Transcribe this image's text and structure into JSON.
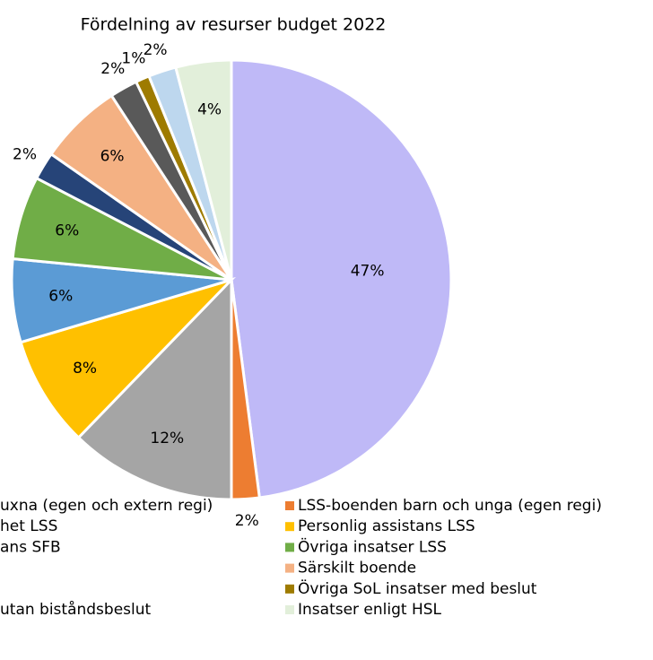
{
  "chart_data": {
    "type": "pie",
    "title": "Fördelning av resurser budget 2022",
    "categories": [
      "uxna (egen och extern regi)",
      "LSS-boenden barn och unga (egen regi)",
      "het LSS",
      "Personlig assistans LSS",
      "ans SFB",
      "Övriga insatser LSS",
      null,
      "Särskilt boende",
      null,
      "Övriga SoL insatser med beslut",
      "utan biståndsbeslut",
      "Insatser enligt HSL"
    ],
    "values": [
      47,
      2,
      12,
      8,
      6,
      6,
      2,
      6,
      2,
      1,
      2,
      4
    ],
    "value_labels": [
      "47%",
      "2%",
      "12%",
      "8%",
      "6%",
      "6%",
      "2%",
      "6%",
      "2%",
      "1%",
      "2%",
      "4%"
    ],
    "colors": [
      "#bfb9f7",
      "#ed7d31",
      "#a5a5a5",
      "#ffc000",
      "#5b9bd5",
      "#70ad47",
      "#264478",
      "#f4b183",
      "#595959",
      "#9e7b00",
      "#bdd7ee",
      "#e2efda"
    ],
    "legend": "bottom"
  }
}
